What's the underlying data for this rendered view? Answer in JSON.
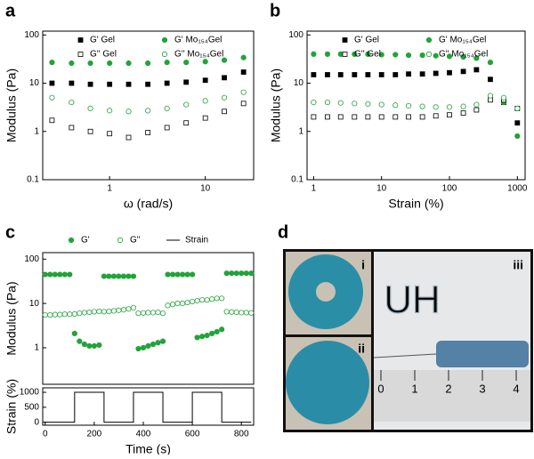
{
  "chart_data": [
    {
      "type": "scatter",
      "panel_label": "a",
      "xlabel": "ω (rad/s)",
      "ylabel": "Modulus (Pa)",
      "log_x": true,
      "log_y": true,
      "xlim": [
        0.2,
        32
      ],
      "ylim": [
        0.1,
        120
      ],
      "xticks": [
        1,
        10
      ],
      "yticks": [
        0.1,
        1,
        10,
        100
      ],
      "x": [
        0.25,
        0.4,
        0.63,
        1,
        1.58,
        2.51,
        3.98,
        6.31,
        10,
        15.8,
        25.1
      ],
      "series": [
        {
          "name": "G' Gel",
          "color": "#000000",
          "marker": "square",
          "filled": true,
          "values": [
            10,
            10,
            9.5,
            9.5,
            9.5,
            9.5,
            10,
            10.5,
            11.5,
            13,
            17
          ]
        },
        {
          "name": "G' Mo₁₅₄Gel",
          "color": "#22a33a",
          "marker": "circle",
          "filled": true,
          "values": [
            27,
            26,
            26,
            26,
            26,
            26,
            27,
            27,
            28,
            30,
            34
          ]
        },
        {
          "name": "G'' Gel",
          "color": "#000000",
          "marker": "square",
          "filled": false,
          "values": [
            1.7,
            1.2,
            1.0,
            0.9,
            0.75,
            0.95,
            1.2,
            1.5,
            1.9,
            2.6,
            3.8
          ]
        },
        {
          "name": "G'' Mo₁₅₄Gel",
          "color": "#22a33a",
          "marker": "circle",
          "filled": false,
          "values": [
            5,
            4,
            3,
            2.7,
            2.6,
            2.7,
            3,
            3.6,
            4.3,
            5,
            6.5
          ]
        }
      ]
    },
    {
      "type": "scatter",
      "panel_label": "b",
      "xlabel": "Strain (%)",
      "ylabel": "Modulus (Pa)",
      "log_x": true,
      "log_y": true,
      "xlim": [
        0.8,
        1300
      ],
      "ylim": [
        0.1,
        120
      ],
      "xticks": [
        1,
        10,
        100,
        1000
      ],
      "yticks": [
        0.1,
        1,
        10,
        100
      ],
      "x": [
        1,
        1.6,
        2.5,
        4,
        6.3,
        10,
        16,
        25,
        40,
        63,
        100,
        160,
        250,
        400,
        630,
        1000
      ],
      "series": [
        {
          "name": "G' Gel",
          "color": "#000000",
          "marker": "square",
          "filled": true,
          "values": [
            15,
            15,
            15,
            15,
            15,
            15,
            15,
            15.5,
            15.5,
            16,
            16.5,
            17.5,
            19,
            12,
            4,
            1.5
          ]
        },
        {
          "name": "G' Mo₁₅₄Gel",
          "color": "#22a33a",
          "marker": "circle",
          "filled": true,
          "values": [
            40,
            40,
            40,
            40,
            40,
            39,
            39,
            38,
            38,
            37,
            36,
            35,
            33,
            27,
            4,
            0.8
          ]
        },
        {
          "name": "G'' Gel",
          "color": "#000000",
          "marker": "square",
          "filled": false,
          "values": [
            2,
            2,
            2,
            2,
            2,
            2,
            2,
            2,
            2,
            2.1,
            2.2,
            2.4,
            2.8,
            4.5,
            4.5,
            3
          ]
        },
        {
          "name": "G'' Mo₁₅₄Gel",
          "color": "#22a33a",
          "marker": "circle",
          "filled": false,
          "values": [
            4,
            4,
            3.9,
            3.8,
            3.7,
            3.6,
            3.5,
            3.4,
            3.3,
            3.2,
            3.2,
            3.3,
            3.6,
            5.5,
            5,
            3
          ]
        }
      ]
    },
    {
      "type": "scatter",
      "panel_label": "c",
      "ylabel": "Modulus (Pa)",
      "log_y": true,
      "xlim": [
        -10,
        850
      ],
      "ylim": [
        0.15,
        140
      ],
      "yticks": [
        1,
        10,
        100
      ],
      "x": [
        0,
        20,
        40,
        60,
        80,
        100,
        120,
        140,
        160,
        180,
        200,
        220,
        240,
        260,
        280,
        300,
        320,
        340,
        360,
        380,
        400,
        420,
        440,
        460,
        480,
        500,
        520,
        540,
        560,
        580,
        600,
        620,
        640,
        660,
        680,
        700,
        720,
        740,
        760,
        780,
        800,
        820,
        840
      ],
      "series": [
        {
          "name": "G'",
          "color": "#22a33a",
          "marker": "circle",
          "filled": true,
          "values": [
            45,
            45,
            45,
            45,
            45,
            45,
            2.1,
            1.4,
            1.2,
            1.1,
            1.1,
            1.15,
            41,
            41,
            41,
            41,
            41,
            41,
            41,
            0.95,
            1.0,
            1.1,
            1.2,
            1.3,
            1.4,
            45,
            45,
            45,
            45,
            45,
            45,
            1.7,
            1.8,
            1.9,
            2.1,
            2.3,
            2.6,
            48,
            48,
            48,
            48,
            48,
            48
          ]
        },
        {
          "name": "G''",
          "color": "#22a33a",
          "marker": "circle",
          "filled": false,
          "values": [
            5.5,
            5.5,
            5.6,
            5.6,
            5.7,
            5.7,
            5.8,
            6,
            6.2,
            6.3,
            6.5,
            6.6,
            6.5,
            6.6,
            6.8,
            7,
            7.2,
            7.5,
            8,
            6,
            6.1,
            6.2,
            6.2,
            6.3,
            6,
            9,
            9.5,
            10,
            10,
            10.5,
            11,
            11.5,
            12,
            12,
            12.5,
            13,
            13,
            6.5,
            6.4,
            6.3,
            6.2,
            6.2,
            6.1
          ]
        }
      ]
    },
    {
      "type": "line",
      "xlabel": "Time (s)",
      "ylabel": "Strain (%)",
      "xlim": [
        -10,
        850
      ],
      "ylim": [
        -100,
        1150
      ],
      "xticks": [
        0,
        200,
        400,
        600,
        800
      ],
      "yticks": [
        0,
        500,
        1000
      ],
      "x": [
        0,
        120,
        120,
        240,
        240,
        360,
        360,
        480,
        480,
        600,
        600,
        720,
        720,
        840
      ],
      "series": [
        {
          "name": "Strain",
          "color": "#000000",
          "values": [
            1,
            1,
            1000,
            1000,
            1,
            1,
            1000,
            1000,
            1,
            1,
            1000,
            1000,
            1,
            1
          ]
        }
      ]
    }
  ],
  "photo": {
    "panel_label": "d",
    "insets": [
      "i",
      "ii",
      "iii"
    ],
    "writing": "UH",
    "ruler_ticks": [
      0,
      1,
      2,
      3,
      4
    ]
  }
}
